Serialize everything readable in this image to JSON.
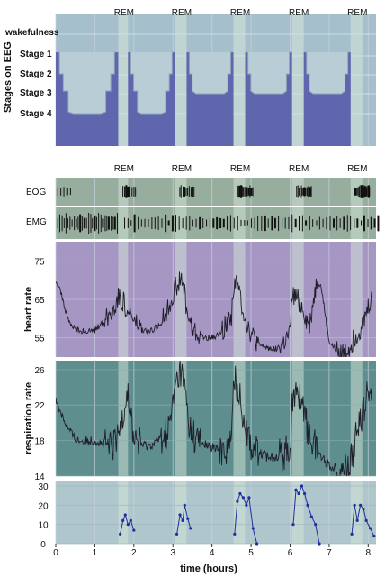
{
  "rem_label": "REM",
  "eeg": {
    "ylabel": "Stages on EEG",
    "stage_labels": [
      "wakefulness",
      "Stage 1",
      "Stage 2",
      "Stage 3",
      "Stage 4"
    ]
  },
  "eog_label": "EOG",
  "emg_label": "EMG",
  "xlabel": "time (hours)",
  "x_ticks": [
    "0",
    "1",
    "2",
    "3",
    "4",
    "5",
    "6",
    "7",
    "8"
  ],
  "colors": {
    "sleep_fill": "#5f66ad",
    "rem_highlight": "#d6e6d8",
    "eeg_bg": "#a6bfcc",
    "eog_bg": "#97ae9e",
    "hr_bg": "#a596c4",
    "resp_bg": "#5f8e8e",
    "bottom_bg": "#aec6cc",
    "line": "#1f1f2a",
    "blue_line": "#1f2fa0"
  },
  "chart_data": {
    "type": "line",
    "x_range": [
      0,
      8.2
    ],
    "rem_periods": [
      [
        1.6,
        1.85
      ],
      [
        3.05,
        3.35
      ],
      [
        4.55,
        4.85
      ],
      [
        6.05,
        6.35
      ],
      [
        7.55,
        7.85
      ]
    ],
    "hypnogram": {
      "title": "",
      "ylabel": "Stages on EEG",
      "levels": [
        "wakefulness",
        "Stage 1",
        "Stage 2",
        "Stage 3",
        "Stage 4"
      ],
      "blocks": [
        {
          "cycle": 1,
          "start": 0.0,
          "end": 1.6,
          "deepest": "Stage 4"
        },
        {
          "cycle": 2,
          "start": 1.85,
          "end": 3.05,
          "deepest": "Stage 4"
        },
        {
          "cycle": 3,
          "start": 3.35,
          "end": 4.55,
          "deepest": "Stage 3"
        },
        {
          "cycle": 4,
          "start": 4.85,
          "end": 6.05,
          "deepest": "Stage 3"
        },
        {
          "cycle": 5,
          "start": 6.35,
          "end": 7.55,
          "deepest": "Stage 3"
        }
      ]
    },
    "heart_rate": {
      "ylabel": "heart rate",
      "ylim": [
        50,
        80
      ],
      "yticks": [
        55,
        65,
        75
      ],
      "x": [
        0,
        0.1,
        0.2,
        0.3,
        0.4,
        0.5,
        0.6,
        0.8,
        1.0,
        1.2,
        1.4,
        1.5,
        1.6,
        1.75,
        1.85,
        1.9,
        2.0,
        2.2,
        2.4,
        2.6,
        2.8,
        2.9,
        3.0,
        3.05,
        3.2,
        3.3,
        3.35,
        3.4,
        3.5,
        3.6,
        3.7,
        3.8,
        4.0,
        4.2,
        4.4,
        4.5,
        4.55,
        4.6,
        4.7,
        4.85,
        5.0,
        5.2,
        5.4,
        5.6,
        5.8,
        6.0,
        6.05,
        6.2,
        6.35,
        6.4,
        6.5,
        6.6,
        6.7,
        6.8,
        7.0,
        7.2,
        7.4,
        7.55,
        7.7,
        7.85,
        8.0,
        8.1
      ],
      "y": [
        70,
        68,
        64,
        60,
        58,
        57.5,
        57,
        56.5,
        57,
        59,
        61,
        63,
        66,
        64,
        60,
        62,
        59,
        57,
        56.5,
        58,
        61,
        63,
        66,
        68,
        70,
        67,
        62,
        60,
        57,
        56,
        55.5,
        55,
        55,
        56,
        59,
        61,
        68,
        70,
        67,
        60,
        56,
        53,
        52.5,
        52,
        53,
        56,
        66,
        65,
        62,
        60,
        58,
        65,
        70,
        68,
        54,
        51.5,
        51,
        53,
        56,
        58,
        63,
        66
      ]
    },
    "respiration_rate": {
      "ylabel": "respiration rate",
      "ylim": [
        14,
        27
      ],
      "yticks": [
        14,
        18,
        22,
        26
      ],
      "x": [
        0,
        0.1,
        0.2,
        0.3,
        0.4,
        0.5,
        0.6,
        0.8,
        1.0,
        1.2,
        1.4,
        1.5,
        1.6,
        1.75,
        1.85,
        1.9,
        2.0,
        2.2,
        2.4,
        2.6,
        2.8,
        2.9,
        3.0,
        3.05,
        3.2,
        3.3,
        3.35,
        3.4,
        3.5,
        3.6,
        3.8,
        4.0,
        4.2,
        4.4,
        4.5,
        4.55,
        4.6,
        4.7,
        4.85,
        5.0,
        5.2,
        5.4,
        5.6,
        5.8,
        6.0,
        6.05,
        6.2,
        6.35,
        6.4,
        6.5,
        6.6,
        6.8,
        7.0,
        7.2,
        7.4,
        7.55,
        7.7,
        7.85,
        8.0,
        8.1
      ],
      "y": [
        22.5,
        21.5,
        20.5,
        19.5,
        18.8,
        18.2,
        18,
        18,
        18,
        17.6,
        17.2,
        17.6,
        18.3,
        22,
        24,
        21,
        18.5,
        17.5,
        17.4,
        18,
        18.6,
        19.5,
        22,
        24,
        26,
        24,
        22,
        20,
        18.8,
        18.2,
        17.6,
        17.2,
        17,
        17.1,
        18,
        24,
        25,
        23,
        20,
        17.5,
        16.6,
        16.2,
        16.2,
        16.4,
        17.2,
        22,
        23.5,
        22,
        20,
        18.6,
        17.8,
        16.2,
        15.2,
        14.8,
        14.9,
        15.5,
        18.5,
        21,
        23.5,
        24.5
      ]
    },
    "bottom_series": {
      "ylabel": "",
      "ylim": [
        0,
        30
      ],
      "yticks": [
        0,
        10,
        20,
        30
      ],
      "segments": [
        {
          "x": [
            1.65,
            1.72,
            1.78,
            1.85,
            1.92,
            2.0
          ],
          "y": [
            5,
            12,
            15,
            10,
            12,
            7
          ]
        },
        {
          "x": [
            3.1,
            3.18,
            3.25,
            3.3,
            3.38,
            3.45
          ],
          "y": [
            5,
            15,
            12,
            20,
            13,
            8
          ]
        },
        {
          "x": [
            4.58,
            4.65,
            4.72,
            4.8,
            4.88,
            4.95,
            5.05,
            5.15
          ],
          "y": [
            5,
            22,
            26,
            24,
            20,
            24,
            8,
            0
          ]
        },
        {
          "x": [
            6.08,
            6.15,
            6.22,
            6.3,
            6.37,
            6.45,
            6.55,
            6.65,
            6.75
          ],
          "y": [
            10,
            28,
            26,
            30,
            26,
            20,
            14,
            10,
            0
          ]
        },
        {
          "x": [
            7.58,
            7.65,
            7.72,
            7.8,
            7.88,
            7.95,
            8.05,
            8.15
          ],
          "y": [
            5,
            20,
            12,
            20,
            18,
            12,
            8,
            4
          ]
        }
      ]
    }
  }
}
